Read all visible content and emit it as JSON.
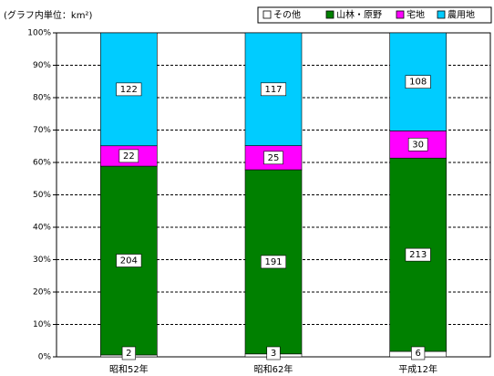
{
  "chart_data": {
    "type": "stacked_percent_bar",
    "subtitle": "(グラフ内単位：km²)",
    "categories": [
      "昭和52年",
      "昭和62年",
      "平成12年"
    ],
    "series": [
      {
        "name": "その他",
        "color": "#ffffff",
        "values": [
          2,
          3,
          6
        ]
      },
      {
        "name": "山林・原野",
        "color": "#008000",
        "values": [
          204,
          191,
          213
        ]
      },
      {
        "name": "宅地",
        "color": "#ff00ff",
        "values": [
          22,
          25,
          30
        ]
      },
      {
        "name": "農用地",
        "color": "#00ccff",
        "values": [
          122,
          117,
          108
        ]
      }
    ],
    "ylim": [
      0,
      100
    ],
    "yticks": [
      {
        "value": 0,
        "label": "0%"
      },
      {
        "value": 10,
        "label": "10%"
      },
      {
        "value": 20,
        "label": "20%"
      },
      {
        "value": 30,
        "label": "30%"
      },
      {
        "value": 40,
        "label": "40%"
      },
      {
        "value": 50,
        "label": "50%"
      },
      {
        "value": 60,
        "label": "60%"
      },
      {
        "value": 70,
        "label": "70%"
      },
      {
        "value": 80,
        "label": "80%"
      },
      {
        "value": 90,
        "label": "90%"
      },
      {
        "value": 100,
        "label": "100%"
      }
    ],
    "grid": true,
    "legend": "top-right"
  }
}
